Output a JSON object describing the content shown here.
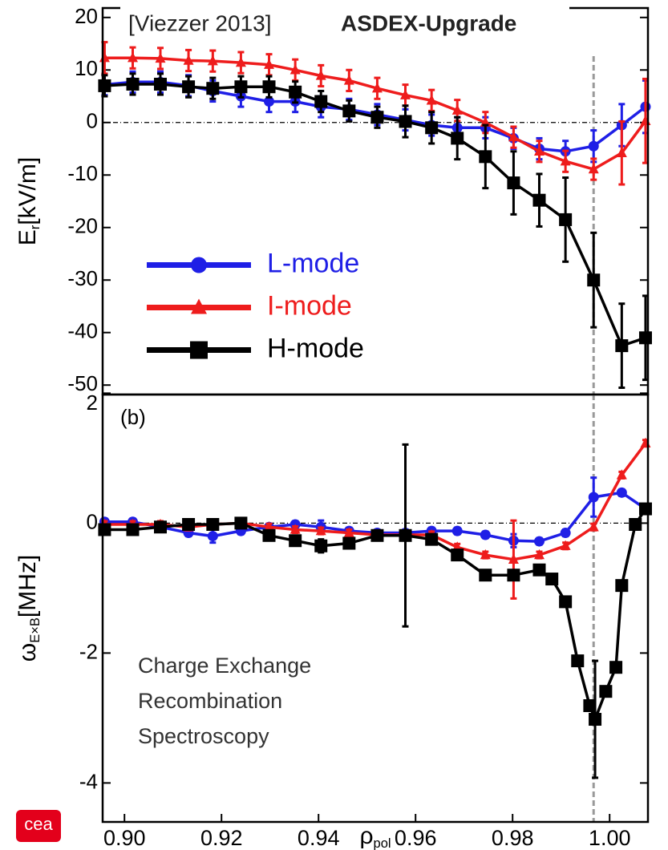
{
  "chart_data": [
    {
      "type": "line",
      "title": "[Viezzer 2013]",
      "subtitle": "ASDEX-Upgrade",
      "ylabel": {
        "text": "E",
        "sub": "r",
        "unit": "[kV/m]"
      },
      "xlim": [
        0.8955,
        1.0079
      ],
      "ylim": [
        -51.8,
        21.8
      ],
      "yticks": [
        20,
        10,
        0,
        -10,
        -20,
        -30,
        -40,
        -50
      ],
      "vline": 0.9967,
      "legend": "center-left",
      "series": [
        {
          "name": "L-mode",
          "color": "#1f1fe6",
          "marker": "circle",
          "x": [
            0.8959,
            0.9017,
            0.9074,
            0.9132,
            0.9182,
            0.924,
            0.9298,
            0.9352,
            0.9405,
            0.9463,
            0.9521,
            0.9579,
            0.9633,
            0.9686,
            0.9744,
            0.9802,
            0.9855,
            0.9909,
            0.9967,
            1.0025,
            1.0074
          ],
          "values": [
            7.2,
            7.7,
            7.7,
            7,
            6,
            5,
            4,
            4,
            3,
            2.5,
            1.5,
            0.5,
            -0.5,
            -1,
            -1,
            -3,
            -5,
            -5.5,
            -4.5,
            -0.5,
            3
          ],
          "errors": [
            2,
            2,
            2,
            2,
            2,
            2,
            2,
            2,
            2,
            2,
            2,
            2,
            2,
            2,
            2,
            2,
            2,
            2,
            3,
            4,
            5
          ]
        },
        {
          "name": "I-mode",
          "color": "#ee1c1c",
          "marker": "triangle",
          "x": [
            0.8959,
            0.9017,
            0.9074,
            0.9132,
            0.9182,
            0.924,
            0.9298,
            0.9352,
            0.9405,
            0.9463,
            0.9521,
            0.9579,
            0.9633,
            0.9686,
            0.9744,
            0.9802,
            0.9855,
            0.9909,
            0.9967,
            1.0025,
            1.0074
          ],
          "values": [
            12.3,
            12.3,
            12.2,
            11.8,
            11.7,
            11.4,
            11,
            10,
            8.9,
            8,
            6.5,
            5.2,
            4.2,
            2.3,
            0,
            -2.8,
            -5.5,
            -7.4,
            -8.9,
            -5.8,
            0.3
          ],
          "errors": [
            3,
            2,
            2,
            2,
            2,
            2,
            2,
            2,
            2,
            2,
            2,
            2,
            2,
            2,
            2,
            2,
            2,
            2,
            2,
            6,
            8
          ]
        },
        {
          "name": "H-mode",
          "color": "#000000",
          "marker": "square",
          "x": [
            0.8959,
            0.9017,
            0.9074,
            0.9132,
            0.9182,
            0.924,
            0.9298,
            0.9352,
            0.9405,
            0.9463,
            0.9521,
            0.9579,
            0.9633,
            0.9686,
            0.9744,
            0.9802,
            0.9855,
            0.9909,
            0.9967,
            1.0025,
            1.0074
          ],
          "values": [
            7,
            7.3,
            7.3,
            6.8,
            6.5,
            6.8,
            6.8,
            5.8,
            4,
            2.2,
            1,
            0.2,
            -1,
            -3,
            -6.5,
            -11.5,
            -14.8,
            -18.5,
            -30,
            -42.5,
            -41
          ],
          "errors": [
            2,
            2,
            2,
            2,
            2,
            2,
            2,
            2,
            2,
            2,
            2,
            3,
            3,
            4,
            6,
            6,
            5,
            8,
            9,
            8,
            8
          ]
        }
      ]
    },
    {
      "type": "line",
      "panel_label": "(b)",
      "ylabel": {
        "text": "ω",
        "sub": "E×B",
        "unit": "[MHz]"
      },
      "xlabel": {
        "text": "ρ",
        "sub": "pol"
      },
      "annotation": [
        "Charge Exchange",
        "Recombination",
        "Spectroscopy"
      ],
      "xlim": [
        0.8955,
        1.0079
      ],
      "ylim": [
        -4.6,
        1.98
      ],
      "xticks": [
        {
          "value": 0.9,
          "label": "0.90"
        },
        0.92,
        0.94,
        0.96,
        0.98,
        {
          "value": 1,
          "label": "1.00"
        }
      ],
      "yticks": [
        2,
        0,
        -2,
        -4
      ],
      "vline": 0.9967,
      "series": [
        {
          "color": "#1f1fe6",
          "marker": "circle",
          "x": [
            0.8959,
            0.9017,
            0.9074,
            0.9132,
            0.9182,
            0.924,
            0.9298,
            0.9352,
            0.9405,
            0.9463,
            0.9521,
            0.9579,
            0.9633,
            0.9686,
            0.9744,
            0.9802,
            0.9855,
            0.9909,
            0.9967,
            1.0025,
            1.0074
          ],
          "values": [
            0.02,
            0.02,
            -0.06,
            -0.15,
            -0.2,
            -0.12,
            -0.06,
            -0.02,
            -0.06,
            -0.12,
            -0.15,
            -0.15,
            -0.12,
            -0.12,
            -0.18,
            -0.27,
            -0.28,
            -0.15,
            0.4,
            0.47,
            0.22
          ],
          "errors": [
            0.05,
            0.05,
            0.05,
            0.05,
            0.1,
            0.05,
            0.05,
            0.05,
            0.1,
            0.05,
            0.05,
            0.05,
            0.05,
            0.05,
            0.05,
            0.1,
            0.05,
            0.05,
            0.3,
            0.05,
            0.05
          ]
        },
        {
          "color": "#ee1c1c",
          "marker": "triangle",
          "x": [
            0.8959,
            0.9017,
            0.9074,
            0.9132,
            0.9182,
            0.924,
            0.9298,
            0.9352,
            0.9405,
            0.9463,
            0.9521,
            0.9579,
            0.9633,
            0.9686,
            0.9744,
            0.9802,
            0.9855,
            0.9909,
            0.9967,
            1.0025,
            1.0074
          ],
          "values": [
            -0.02,
            -0.02,
            -0.02,
            -0.06,
            -0.02,
            0,
            -0.06,
            -0.1,
            -0.12,
            -0.15,
            -0.18,
            -0.18,
            -0.18,
            -0.37,
            -0.49,
            -0.56,
            -0.49,
            -0.35,
            -0.06,
            0.74,
            1.23
          ],
          "errors": [
            0.05,
            0.05,
            0.05,
            0.05,
            0.05,
            0.05,
            0.05,
            0.05,
            0.05,
            0.05,
            0.05,
            0.05,
            0.05,
            0.05,
            0.05,
            0.6,
            0.05,
            0.05,
            0.05,
            0.05,
            0.05
          ]
        },
        {
          "color": "#000000",
          "marker": "square",
          "x": [
            0.8959,
            0.9017,
            0.9074,
            0.9132,
            0.9182,
            0.924,
            0.9298,
            0.9352,
            0.9405,
            0.9463,
            0.9521,
            0.9579,
            0.9633,
            0.9686,
            0.9744,
            0.9802,
            0.9855,
            0.9881,
            0.9909,
            0.9934,
            0.9959,
            0.997,
            0.9992,
            1.0013,
            1.0025,
            1.0053,
            1.0074
          ],
          "values": [
            -0.1,
            -0.1,
            -0.06,
            -0.02,
            -0.02,
            0,
            -0.19,
            -0.27,
            -0.35,
            -0.31,
            -0.19,
            -0.19,
            -0.25,
            -0.49,
            -0.8,
            -0.8,
            -0.72,
            -0.86,
            -1.21,
            -2.12,
            -2.81,
            -3.02,
            -2.59,
            -2.22,
            -0.96,
            -0.02,
            0.22
          ],
          "errors": [
            0.05,
            0.05,
            0.05,
            0.05,
            0.05,
            0.05,
            0.05,
            0.05,
            0.1,
            0.05,
            0.05,
            1.4,
            0.05,
            0.05,
            0.05,
            0.05,
            0.05,
            0.05,
            0.05,
            0.05,
            0.05,
            0.9,
            0.05,
            0.05,
            0.05,
            0.05,
            0.05
          ]
        }
      ]
    }
  ],
  "logo": "cea"
}
